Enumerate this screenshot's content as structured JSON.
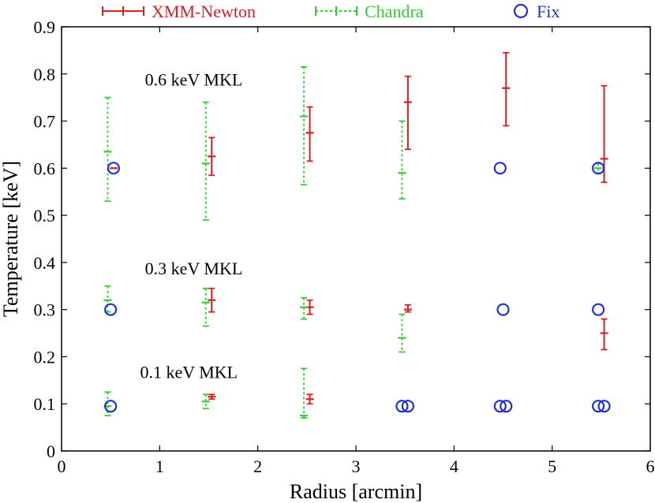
{
  "chart_data": {
    "type": "scatter",
    "xlabel": "Radius [arcmin]",
    "ylabel": "Temperature [keV]",
    "xlim": [
      0,
      6
    ],
    "ylim": [
      0,
      0.9
    ],
    "xticks": [
      0,
      1,
      2,
      3,
      4,
      5,
      6
    ],
    "yticks": [
      0,
      0.1,
      0.2,
      0.3,
      0.4,
      0.5,
      0.6,
      0.7,
      0.8,
      0.9
    ],
    "xtick_labels": [
      "0",
      "1",
      "2",
      "3",
      "4",
      "5",
      "6"
    ],
    "ytick_labels": [
      "0",
      "0.1",
      "0.2",
      "0.3",
      "0.4",
      "0.5",
      "0.6",
      "0.7",
      "0.8",
      "0.9"
    ],
    "grid": false,
    "legend": {
      "placement": "top",
      "entries": [
        {
          "name": "XMM-Newton",
          "color": "#d42020",
          "marker": "errorbar-solid"
        },
        {
          "name": "Chandra",
          "color": "#33cc33",
          "marker": "errorbar-dotted"
        },
        {
          "name": "Fix",
          "color": "#1f2fd0",
          "marker": "circle"
        }
      ]
    },
    "annotations": [
      {
        "text": "0.6 keV MKL",
        "x": 0.85,
        "y": 0.775
      },
      {
        "text": "0.3 keV MKL",
        "x": 0.85,
        "y": 0.375
      },
      {
        "text": "0.1 keV MKL",
        "x": 0.8,
        "y": 0.155
      }
    ],
    "series": [
      {
        "name": "XMM-Newton",
        "color": "#d42020",
        "style": "solid",
        "points": [
          {
            "x": 1.53,
            "y": 0.625,
            "lo": 0.585,
            "hi": 0.665
          },
          {
            "x": 2.53,
            "y": 0.675,
            "lo": 0.615,
            "hi": 0.73
          },
          {
            "x": 3.53,
            "y": 0.74,
            "lo": 0.64,
            "hi": 0.795
          },
          {
            "x": 4.53,
            "y": 0.77,
            "lo": 0.69,
            "hi": 0.845
          },
          {
            "x": 5.53,
            "y": 0.62,
            "lo": 0.57,
            "hi": 0.775
          },
          {
            "x": 0.53,
            "y": 0.6,
            "lo": 0.6,
            "hi": 0.6
          },
          {
            "x": 1.53,
            "y": 0.32,
            "lo": 0.295,
            "hi": 0.345
          },
          {
            "x": 2.53,
            "y": 0.305,
            "lo": 0.29,
            "hi": 0.32
          },
          {
            "x": 3.53,
            "y": 0.3,
            "lo": 0.295,
            "hi": 0.31
          },
          {
            "x": 5.53,
            "y": 0.25,
            "lo": 0.215,
            "hi": 0.28
          },
          {
            "x": 1.53,
            "y": 0.115,
            "lo": 0.11,
            "hi": 0.12
          },
          {
            "x": 2.53,
            "y": 0.11,
            "lo": 0.1,
            "hi": 0.12
          }
        ]
      },
      {
        "name": "Chandra",
        "color": "#33cc33",
        "style": "dotted",
        "points": [
          {
            "x": 0.47,
            "y": 0.635,
            "lo": 0.53,
            "hi": 0.75
          },
          {
            "x": 1.47,
            "y": 0.61,
            "lo": 0.49,
            "hi": 0.74
          },
          {
            "x": 2.47,
            "y": 0.71,
            "lo": 0.565,
            "hi": 0.815
          },
          {
            "x": 3.47,
            "y": 0.59,
            "lo": 0.535,
            "hi": 0.7
          },
          {
            "x": 5.47,
            "y": 0.6,
            "lo": 0.59,
            "hi": 0.61
          },
          {
            "x": 0.47,
            "y": 0.32,
            "lo": 0.295,
            "hi": 0.35
          },
          {
            "x": 1.47,
            "y": 0.315,
            "lo": 0.265,
            "hi": 0.345
          },
          {
            "x": 2.47,
            "y": 0.305,
            "lo": 0.28,
            "hi": 0.325
          },
          {
            "x": 3.47,
            "y": 0.24,
            "lo": 0.21,
            "hi": 0.29
          },
          {
            "x": 0.47,
            "y": 0.095,
            "lo": 0.075,
            "hi": 0.125
          },
          {
            "x": 1.47,
            "y": 0.105,
            "lo": 0.09,
            "hi": 0.12
          },
          {
            "x": 2.47,
            "y": 0.075,
            "lo": 0.07,
            "hi": 0.175
          }
        ]
      },
      {
        "name": "Fix",
        "color": "#1f2fd0",
        "style": "circle",
        "points": [
          {
            "x": 0.53,
            "y": 0.6
          },
          {
            "x": 4.47,
            "y": 0.6
          },
          {
            "x": 5.47,
            "y": 0.6
          },
          {
            "x": 0.5,
            "y": 0.3
          },
          {
            "x": 4.5,
            "y": 0.3
          },
          {
            "x": 5.47,
            "y": 0.3
          },
          {
            "x": 0.5,
            "y": 0.095
          },
          {
            "x": 3.47,
            "y": 0.095
          },
          {
            "x": 3.53,
            "y": 0.095
          },
          {
            "x": 4.47,
            "y": 0.095
          },
          {
            "x": 4.53,
            "y": 0.095
          },
          {
            "x": 5.47,
            "y": 0.095
          },
          {
            "x": 5.53,
            "y": 0.095
          }
        ]
      }
    ]
  }
}
